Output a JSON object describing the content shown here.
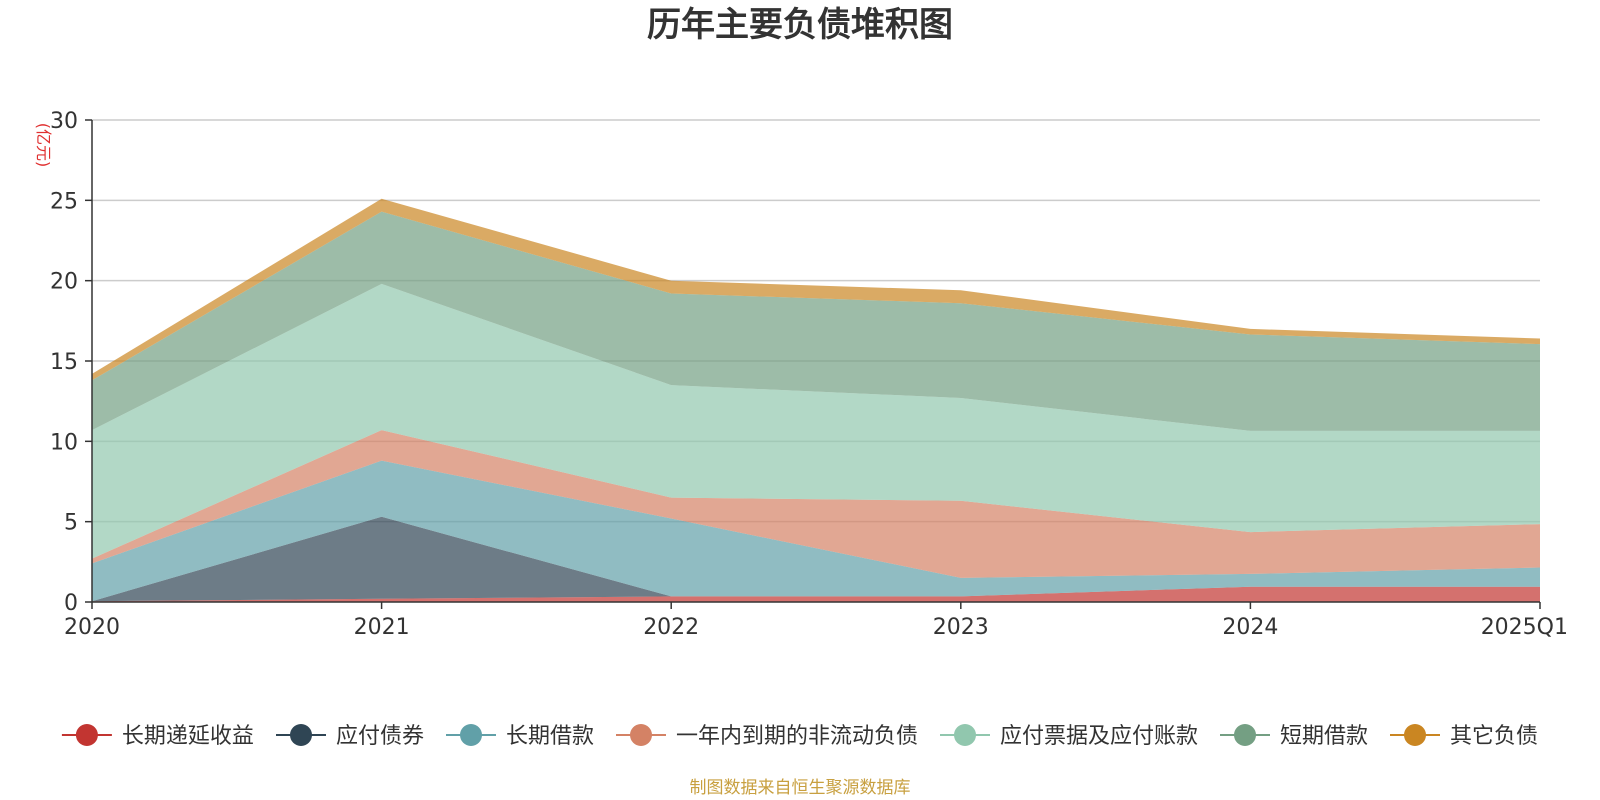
{
  "chart_data": {
    "type": "area",
    "stacked": true,
    "title": "历年主要负债堆积图",
    "unit_label": "(亿元)",
    "categories": [
      "2020",
      "2021",
      "2022",
      "2023",
      "2024",
      "2025Q1"
    ],
    "ylim": [
      0,
      30
    ],
    "yticks": [
      "0",
      "5",
      "10",
      "15",
      "20",
      "25",
      "30"
    ],
    "grid": true,
    "legend_position": "bottom",
    "series": [
      {
        "name": "长期递延收益",
        "color": "#c23531",
        "values": [
          0.05,
          0.2,
          0.35,
          0.35,
          0.95,
          0.95
        ]
      },
      {
        "name": "应付债券",
        "color": "#2f4554",
        "values": [
          0,
          5.1,
          0,
          0,
          0,
          0
        ]
      },
      {
        "name": "长期借款",
        "color": "#61a0a8",
        "values": [
          2.35,
          3.5,
          4.85,
          1.15,
          0.8,
          1.2
        ]
      },
      {
        "name": "一年内到期的非流动负债",
        "color": "#d48265",
        "values": [
          0.3,
          1.9,
          1.3,
          4.8,
          2.6,
          2.7
        ]
      },
      {
        "name": "应付票据及应付账款",
        "color": "#91c7ae",
        "values": [
          8.0,
          9.1,
          7.0,
          6.4,
          6.3,
          5.8
        ]
      },
      {
        "name": "短期借款",
        "color": "#749f83",
        "values": [
          3.1,
          4.5,
          5.7,
          5.9,
          6.0,
          5.4
        ]
      },
      {
        "name": "其它负债",
        "color": "#ca8622",
        "values": [
          0.4,
          0.8,
          0.8,
          0.8,
          0.35,
          0.35
        ]
      }
    ],
    "source_note": "制图数据来自恒生聚源数据库"
  }
}
